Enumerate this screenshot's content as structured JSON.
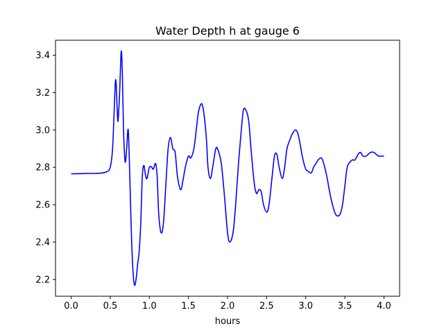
{
  "chart_data": {
    "type": "line",
    "title": "Water Depth h at gauge 6",
    "xlabel": "hours",
    "ylabel": "",
    "xlim": [
      -0.2,
      4.2
    ],
    "ylim": [
      2.11,
      3.48
    ],
    "xticks": [
      0.0,
      0.5,
      1.0,
      1.5,
      2.0,
      2.5,
      3.0,
      3.5,
      4.0
    ],
    "xtick_labels": [
      "0.0",
      "0.5",
      "1.0",
      "1.5",
      "2.0",
      "2.5",
      "3.0",
      "3.5",
      "4.0"
    ],
    "yticks": [
      2.2,
      2.4,
      2.6,
      2.8,
      3.0,
      3.2,
      3.4
    ],
    "ytick_labels": [
      "2.2",
      "2.4",
      "2.6",
      "2.8",
      "3.0",
      "3.2",
      "3.4"
    ],
    "grid": false,
    "series": [
      {
        "color": "#0000ff",
        "x": [
          0.0,
          0.2,
          0.35,
          0.45,
          0.5,
          0.53,
          0.55,
          0.57,
          0.59,
          0.6,
          0.62,
          0.64,
          0.655,
          0.67,
          0.69,
          0.71,
          0.73,
          0.75,
          0.77,
          0.79,
          0.81,
          0.83,
          0.85,
          0.87,
          0.89,
          0.91,
          0.93,
          0.95,
          0.97,
          1.0,
          1.03,
          1.05,
          1.08,
          1.1,
          1.12,
          1.15,
          1.18,
          1.21,
          1.24,
          1.27,
          1.3,
          1.33,
          1.36,
          1.4,
          1.43,
          1.46,
          1.5,
          1.53,
          1.57,
          1.6,
          1.63,
          1.67,
          1.7,
          1.73,
          1.75,
          1.78,
          1.81,
          1.85,
          1.88,
          1.92,
          1.96,
          2.0,
          2.03,
          2.07,
          2.1,
          2.14,
          2.17,
          2.2,
          2.23,
          2.27,
          2.3,
          2.34,
          2.37,
          2.4,
          2.43,
          2.46,
          2.5,
          2.53,
          2.57,
          2.6,
          2.63,
          2.66,
          2.7,
          2.73,
          2.76,
          2.8,
          2.83,
          2.87,
          2.9,
          2.93,
          2.96,
          3.0,
          3.03,
          3.07,
          3.1,
          3.13,
          3.16,
          3.2,
          3.23,
          3.27,
          3.3,
          3.33,
          3.37,
          3.4,
          3.44,
          3.47,
          3.5,
          3.53,
          3.57,
          3.6,
          3.63,
          3.67,
          3.7,
          3.73,
          3.77,
          3.8,
          3.83,
          3.87,
          3.9,
          3.93,
          3.95,
          3.97,
          4.0
        ],
        "y": [
          2.765,
          2.767,
          2.768,
          2.775,
          2.8,
          2.9,
          3.1,
          3.27,
          3.1,
          3.05,
          3.2,
          3.42,
          3.3,
          3.0,
          2.83,
          2.9,
          3.0,
          2.75,
          2.45,
          2.25,
          2.17,
          2.2,
          2.28,
          2.35,
          2.5,
          2.75,
          2.81,
          2.76,
          2.74,
          2.8,
          2.8,
          2.79,
          2.82,
          2.75,
          2.55,
          2.45,
          2.5,
          2.7,
          2.9,
          2.96,
          2.9,
          2.88,
          2.75,
          2.68,
          2.73,
          2.8,
          2.86,
          2.85,
          2.9,
          3.0,
          3.1,
          3.14,
          3.08,
          2.95,
          2.8,
          2.74,
          2.8,
          2.9,
          2.89,
          2.82,
          2.65,
          2.45,
          2.4,
          2.45,
          2.58,
          2.82,
          2.97,
          3.1,
          3.11,
          3.05,
          2.9,
          2.72,
          2.66,
          2.68,
          2.67,
          2.6,
          2.56,
          2.6,
          2.75,
          2.86,
          2.87,
          2.8,
          2.74,
          2.8,
          2.9,
          2.95,
          2.98,
          3.0,
          2.98,
          2.92,
          2.85,
          2.79,
          2.78,
          2.77,
          2.8,
          2.82,
          2.84,
          2.85,
          2.82,
          2.75,
          2.68,
          2.62,
          2.56,
          2.54,
          2.55,
          2.6,
          2.7,
          2.8,
          2.83,
          2.84,
          2.84,
          2.87,
          2.88,
          2.86,
          2.86,
          2.87,
          2.88,
          2.88,
          2.87,
          2.86,
          2.86,
          2.86,
          2.86
        ]
      }
    ]
  }
}
